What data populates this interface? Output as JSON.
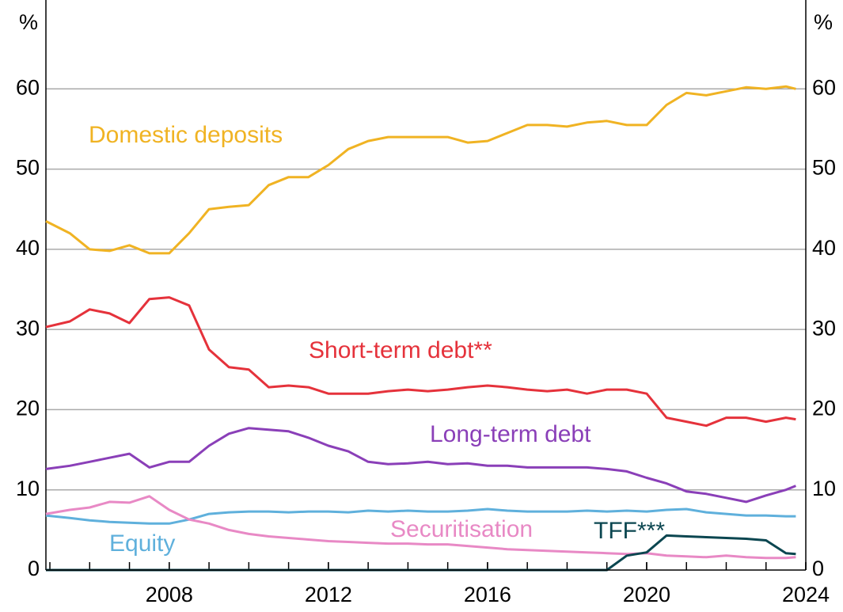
{
  "chart_data": {
    "type": "line",
    "y_unit": "%",
    "x": [
      2004.9,
      2005.5,
      2006.0,
      2006.5,
      2007.0,
      2007.5,
      2008.0,
      2008.5,
      2009.0,
      2009.5,
      2010.0,
      2010.5,
      2011.0,
      2011.5,
      2012.0,
      2012.5,
      2013.0,
      2013.5,
      2014.0,
      2014.5,
      2015.0,
      2015.5,
      2016.0,
      2016.5,
      2017.0,
      2017.5,
      2018.0,
      2018.5,
      2019.0,
      2019.5,
      2020.0,
      2020.5,
      2021.0,
      2021.5,
      2022.0,
      2022.5,
      2023.0,
      2023.5,
      2023.75
    ],
    "series": [
      {
        "name": "Domestic deposits",
        "color": "#f0b323",
        "values": [
          43.5,
          42,
          40,
          39.8,
          40.5,
          39.5,
          39.5,
          42,
          45,
          45.3,
          45.5,
          48,
          49,
          49,
          50.5,
          52.5,
          53.5,
          54,
          54,
          54,
          54,
          53.3,
          53.5,
          54.5,
          55.5,
          55.5,
          55.3,
          55.8,
          56,
          55.5,
          55.5,
          58,
          59.5,
          59.2,
          59.7,
          60.2,
          60,
          60.3,
          60
        ]
      },
      {
        "name": "Short-term debt**",
        "color": "#e5323b",
        "values": [
          30.3,
          31,
          32.5,
          32,
          30.8,
          33.8,
          34,
          33,
          27.5,
          25.3,
          25,
          22.8,
          23,
          22.8,
          22,
          22,
          22,
          22.3,
          22.5,
          22.3,
          22.5,
          22.8,
          23,
          22.8,
          22.5,
          22.3,
          22.5,
          22,
          22.5,
          22.5,
          22,
          19,
          18.5,
          18,
          19,
          19,
          18.5,
          19,
          18.8
        ]
      },
      {
        "name": "Long-term debt",
        "color": "#8a3fb8",
        "values": [
          12.6,
          13,
          13.5,
          14,
          14.5,
          12.8,
          13.5,
          13.5,
          15.5,
          17,
          17.7,
          17.5,
          17.3,
          16.5,
          15.5,
          14.8,
          13.5,
          13.2,
          13.3,
          13.5,
          13.2,
          13.3,
          13,
          13,
          12.8,
          12.8,
          12.8,
          12.8,
          12.6,
          12.3,
          11.5,
          10.8,
          9.8,
          9.5,
          9,
          8.5,
          9.3,
          10,
          10.5
        ]
      },
      {
        "name": "Equity",
        "color": "#5fb0dc",
        "values": [
          6.8,
          6.5,
          6.2,
          6,
          5.9,
          5.8,
          5.8,
          6.3,
          7,
          7.2,
          7.3,
          7.3,
          7.2,
          7.3,
          7.3,
          7.2,
          7.4,
          7.3,
          7.4,
          7.3,
          7.3,
          7.4,
          7.6,
          7.4,
          7.3,
          7.3,
          7.3,
          7.4,
          7.3,
          7.4,
          7.3,
          7.5,
          7.6,
          7.2,
          7,
          6.8,
          6.8,
          6.7,
          6.7
        ]
      },
      {
        "name": "Securitisation",
        "color": "#e889c5",
        "values": [
          7,
          7.5,
          7.8,
          8.5,
          8.4,
          9.2,
          7.5,
          6.3,
          5.8,
          5,
          4.5,
          4.2,
          4,
          3.8,
          3.6,
          3.5,
          3.4,
          3.3,
          3.3,
          3.2,
          3.2,
          3,
          2.8,
          2.6,
          2.5,
          2.4,
          2.3,
          2.2,
          2.1,
          2.0,
          2.1,
          1.8,
          1.7,
          1.6,
          1.8,
          1.6,
          1.5,
          1.5,
          1.6
        ]
      },
      {
        "name": "TFF***",
        "color": "#0b4650",
        "values": [
          0,
          0,
          0,
          0,
          0,
          0,
          0,
          0,
          0,
          0,
          0,
          0,
          0,
          0,
          0,
          0,
          0,
          0,
          0,
          0,
          0,
          0,
          0,
          0,
          0,
          0,
          0,
          0,
          0,
          1.8,
          2.2,
          4.3,
          4.2,
          4.1,
          4.0,
          3.9,
          3.7,
          2.1,
          2
        ]
      }
    ],
    "xlim": [
      2004.9,
      2024
    ],
    "xticks": [
      2008,
      2012,
      2016,
      2020,
      2024
    ],
    "xminorticks": [
      2005,
      2006,
      2007,
      2008,
      2009,
      2010,
      2011,
      2012,
      2013,
      2014,
      2015,
      2016,
      2017,
      2018,
      2019,
      2020,
      2021,
      2022,
      2023,
      2024
    ],
    "ylim": [
      0,
      70
    ],
    "yticks": [
      0,
      10,
      20,
      30,
      40,
      50,
      60
    ],
    "grid": true
  }
}
